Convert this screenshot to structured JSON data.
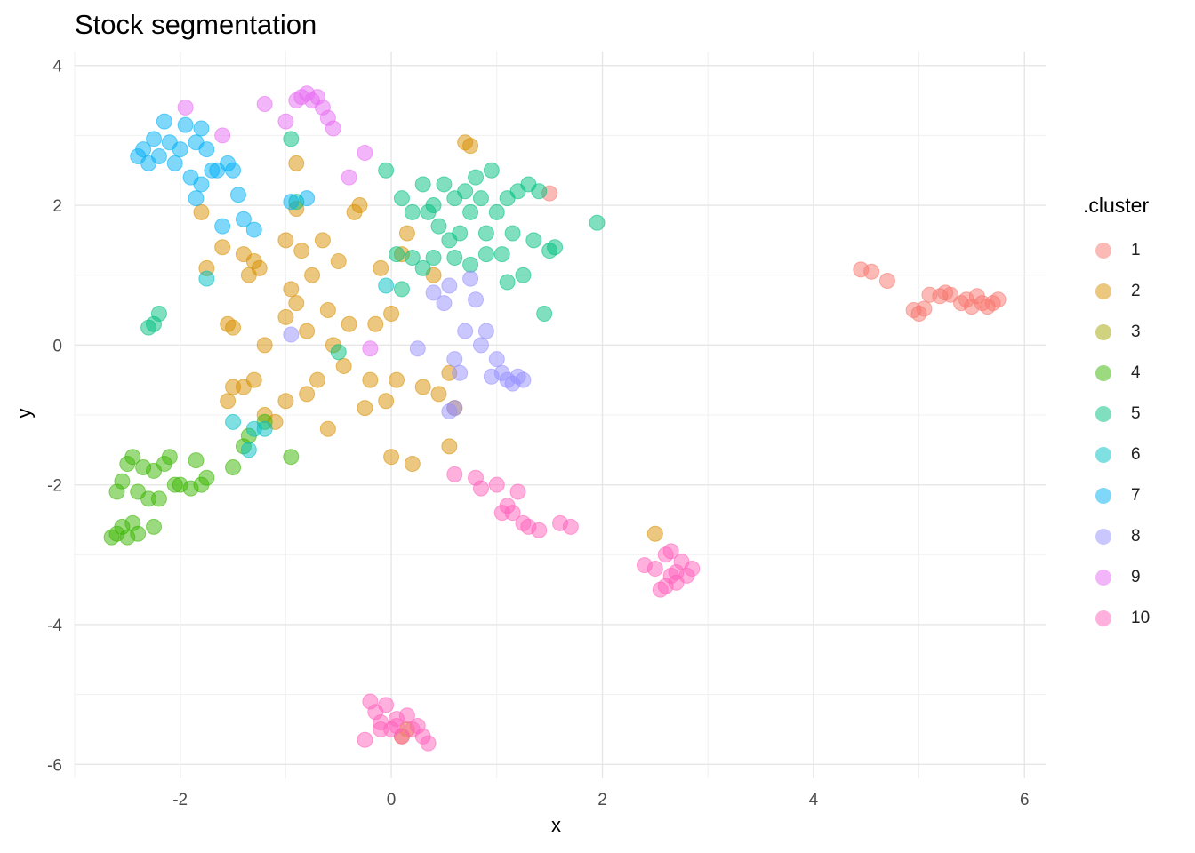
{
  "chart_data": {
    "type": "scatter",
    "title": "Stock segmentation",
    "xlabel": "x",
    "ylabel": "y",
    "xlim": [
      -3,
      6.2
    ],
    "ylim": [
      -6.2,
      4.2
    ],
    "x_ticks": [
      -2,
      0,
      2,
      4,
      6
    ],
    "y_ticks": [
      -6,
      -4,
      -2,
      0,
      2,
      4
    ],
    "grid": true,
    "legend": {
      "title": ".cluster",
      "position": "right"
    },
    "series": [
      {
        "name": "1",
        "color": "#F8766D",
        "points": [
          [
            1.5,
            2.17
          ],
          [
            4.45,
            1.08
          ],
          [
            4.55,
            1.05
          ],
          [
            4.7,
            0.92
          ],
          [
            4.95,
            0.5
          ],
          [
            5.0,
            0.45
          ],
          [
            5.05,
            0.52
          ],
          [
            5.1,
            0.72
          ],
          [
            5.2,
            0.7
          ],
          [
            5.25,
            0.75
          ],
          [
            5.3,
            0.72
          ],
          [
            5.4,
            0.6
          ],
          [
            5.45,
            0.65
          ],
          [
            5.5,
            0.55
          ],
          [
            5.55,
            0.7
          ],
          [
            5.6,
            0.6
          ],
          [
            5.65,
            0.55
          ],
          [
            5.7,
            0.6
          ],
          [
            5.75,
            0.65
          ]
        ]
      },
      {
        "name": "2",
        "color": "#D89000",
        "points": [
          [
            -1.8,
            1.9
          ],
          [
            -1.75,
            1.1
          ],
          [
            -1.6,
            1.4
          ],
          [
            -1.55,
            0.3
          ],
          [
            -1.5,
            0.25
          ],
          [
            -1.4,
            1.3
          ],
          [
            -1.35,
            1.0
          ],
          [
            -1.3,
            1.2
          ],
          [
            -1.25,
            1.1
          ],
          [
            -1.2,
            0.0
          ],
          [
            -1.4,
            -0.6
          ],
          [
            -1.5,
            -0.6
          ],
          [
            -1.55,
            -0.8
          ],
          [
            -1.3,
            -0.5
          ],
          [
            -1.2,
            -1.0
          ],
          [
            -1.1,
            -1.1
          ],
          [
            -1.0,
            -0.8
          ],
          [
            -1.0,
            0.4
          ],
          [
            -1.0,
            1.5
          ],
          [
            -0.95,
            0.8
          ],
          [
            -0.9,
            0.6
          ],
          [
            -0.9,
            1.95
          ],
          [
            -0.9,
            2.6
          ],
          [
            -0.85,
            1.35
          ],
          [
            -0.8,
            0.2
          ],
          [
            -0.8,
            -0.7
          ],
          [
            -0.75,
            1.0
          ],
          [
            -0.7,
            -0.5
          ],
          [
            -0.65,
            1.5
          ],
          [
            -0.6,
            -1.2
          ],
          [
            -0.6,
            0.5
          ],
          [
            -0.55,
            0.0
          ],
          [
            -0.5,
            1.2
          ],
          [
            -0.45,
            -0.3
          ],
          [
            -0.4,
            0.3
          ],
          [
            -0.35,
            1.9
          ],
          [
            -0.3,
            2.0
          ],
          [
            -0.25,
            -0.9
          ],
          [
            -0.2,
            -0.5
          ],
          [
            -0.15,
            0.3
          ],
          [
            -0.1,
            1.1
          ],
          [
            -0.05,
            -0.8
          ],
          [
            0.0,
            0.45
          ],
          [
            0.0,
            -1.6
          ],
          [
            0.05,
            -0.5
          ],
          [
            0.1,
            1.3
          ],
          [
            0.15,
            1.6
          ],
          [
            0.2,
            -1.7
          ],
          [
            0.3,
            -0.6
          ],
          [
            0.4,
            1.0
          ],
          [
            0.45,
            -0.7
          ],
          [
            0.55,
            -0.4
          ],
          [
            0.6,
            -0.9
          ],
          [
            0.55,
            -1.45
          ],
          [
            0.7,
            2.9
          ],
          [
            0.75,
            2.85
          ],
          [
            2.5,
            -2.7
          ],
          [
            0.15,
            -5.5
          ],
          [
            0.1,
            -5.6
          ]
        ]
      },
      {
        "name": "3",
        "color": "#A3A500",
        "points": []
      },
      {
        "name": "4",
        "color": "#39B600",
        "points": [
          [
            -2.65,
            -2.75
          ],
          [
            -2.6,
            -2.7
          ],
          [
            -2.55,
            -2.6
          ],
          [
            -2.5,
            -2.75
          ],
          [
            -2.45,
            -2.55
          ],
          [
            -2.4,
            -2.7
          ],
          [
            -2.6,
            -2.1
          ],
          [
            -2.55,
            -1.95
          ],
          [
            -2.5,
            -1.7
          ],
          [
            -2.45,
            -1.6
          ],
          [
            -2.4,
            -2.1
          ],
          [
            -2.35,
            -1.75
          ],
          [
            -2.3,
            -2.2
          ],
          [
            -2.25,
            -1.8
          ],
          [
            -2.25,
            -2.6
          ],
          [
            -2.2,
            -2.2
          ],
          [
            -2.15,
            -1.7
          ],
          [
            -2.1,
            -1.6
          ],
          [
            -2.05,
            -2.0
          ],
          [
            -2.0,
            -2.0
          ],
          [
            -1.9,
            -2.05
          ],
          [
            -1.85,
            -1.65
          ],
          [
            -1.8,
            -2.0
          ],
          [
            -1.75,
            -1.9
          ],
          [
            -1.5,
            -1.75
          ],
          [
            -1.4,
            -1.45
          ],
          [
            -1.35,
            -1.3
          ],
          [
            -1.2,
            -1.1
          ],
          [
            -0.95,
            -1.6
          ]
        ]
      },
      {
        "name": "5",
        "color": "#00BF7D",
        "points": [
          [
            -2.3,
            0.25
          ],
          [
            -2.25,
            0.3
          ],
          [
            -2.2,
            0.45
          ],
          [
            -0.95,
            2.95
          ],
          [
            -0.9,
            2.05
          ],
          [
            -0.05,
            2.5
          ],
          [
            0.1,
            2.1
          ],
          [
            0.2,
            1.9
          ],
          [
            0.3,
            2.3
          ],
          [
            0.35,
            1.9
          ],
          [
            0.4,
            2.0
          ],
          [
            0.45,
            1.7
          ],
          [
            0.5,
            2.3
          ],
          [
            0.55,
            1.5
          ],
          [
            0.6,
            2.1
          ],
          [
            0.65,
            1.6
          ],
          [
            0.7,
            2.2
          ],
          [
            0.75,
            1.9
          ],
          [
            0.8,
            2.4
          ],
          [
            0.85,
            2.1
          ],
          [
            0.9,
            1.6
          ],
          [
            0.95,
            2.5
          ],
          [
            1.0,
            1.9
          ],
          [
            1.05,
            1.3
          ],
          [
            1.1,
            2.1
          ],
          [
            1.15,
            1.6
          ],
          [
            1.2,
            2.2
          ],
          [
            1.25,
            1.0
          ],
          [
            1.3,
            2.3
          ],
          [
            1.35,
            1.5
          ],
          [
            1.4,
            2.2
          ],
          [
            1.45,
            0.45
          ],
          [
            1.5,
            1.35
          ],
          [
            1.55,
            1.4
          ],
          [
            1.95,
            1.75
          ],
          [
            0.05,
            1.3
          ],
          [
            0.1,
            0.8
          ],
          [
            0.2,
            1.25
          ],
          [
            0.3,
            1.1
          ],
          [
            0.4,
            1.25
          ],
          [
            0.6,
            1.25
          ],
          [
            0.75,
            1.15
          ],
          [
            0.9,
            1.3
          ],
          [
            1.1,
            0.9
          ],
          [
            -0.5,
            -0.1
          ]
        ]
      },
      {
        "name": "6",
        "color": "#00BFC4",
        "points": [
          [
            -1.75,
            0.95
          ],
          [
            -1.5,
            -1.1
          ],
          [
            -1.35,
            -1.5
          ],
          [
            -1.3,
            -1.2
          ],
          [
            -1.2,
            -1.2
          ],
          [
            -0.05,
            0.85
          ]
        ]
      },
      {
        "name": "7",
        "color": "#00B0F6",
        "points": [
          [
            -2.4,
            2.7
          ],
          [
            -2.35,
            2.8
          ],
          [
            -2.3,
            2.6
          ],
          [
            -2.25,
            2.95
          ],
          [
            -2.2,
            2.7
          ],
          [
            -2.15,
            3.2
          ],
          [
            -2.1,
            2.9
          ],
          [
            -2.05,
            2.6
          ],
          [
            -2.0,
            2.8
          ],
          [
            -1.95,
            3.15
          ],
          [
            -1.9,
            2.4
          ],
          [
            -1.85,
            2.9
          ],
          [
            -1.85,
            2.1
          ],
          [
            -1.8,
            3.1
          ],
          [
            -1.8,
            2.3
          ],
          [
            -1.75,
            2.8
          ],
          [
            -1.7,
            2.5
          ],
          [
            -1.65,
            2.5
          ],
          [
            -1.6,
            1.7
          ],
          [
            -1.55,
            2.6
          ],
          [
            -1.5,
            2.5
          ],
          [
            -1.45,
            2.15
          ],
          [
            -1.4,
            1.8
          ],
          [
            -1.3,
            1.65
          ],
          [
            -0.95,
            2.05
          ],
          [
            -0.8,
            2.1
          ]
        ]
      },
      {
        "name": "8",
        "color": "#9590FF",
        "points": [
          [
            -0.95,
            0.15
          ],
          [
            0.25,
            -0.05
          ],
          [
            0.4,
            0.75
          ],
          [
            0.5,
            0.6
          ],
          [
            0.55,
            0.85
          ],
          [
            0.6,
            -0.2
          ],
          [
            0.65,
            -0.4
          ],
          [
            0.7,
            0.2
          ],
          [
            0.75,
            0.95
          ],
          [
            0.8,
            0.65
          ],
          [
            0.85,
            0.0
          ],
          [
            0.9,
            0.2
          ],
          [
            0.95,
            -0.45
          ],
          [
            1.0,
            -0.2
          ],
          [
            1.05,
            -0.4
          ],
          [
            1.1,
            -0.5
          ],
          [
            1.15,
            -0.55
          ],
          [
            1.2,
            -0.45
          ],
          [
            1.25,
            -0.5
          ],
          [
            0.55,
            -0.95
          ],
          [
            0.6,
            -0.9
          ]
        ]
      },
      {
        "name": "9",
        "color": "#E76BF3",
        "points": [
          [
            -1.95,
            3.4
          ],
          [
            -1.6,
            3.0
          ],
          [
            -1.2,
            3.45
          ],
          [
            -1.0,
            3.2
          ],
          [
            -0.9,
            3.5
          ],
          [
            -0.85,
            3.55
          ],
          [
            -0.8,
            3.6
          ],
          [
            -0.75,
            3.5
          ],
          [
            -0.7,
            3.55
          ],
          [
            -0.65,
            3.4
          ],
          [
            -0.6,
            3.25
          ],
          [
            -0.55,
            3.1
          ],
          [
            -0.4,
            2.4
          ],
          [
            -0.25,
            2.75
          ],
          [
            -0.2,
            -0.05
          ]
        ]
      },
      {
        "name": "10",
        "color": "#FF62BC",
        "points": [
          [
            0.6,
            -1.85
          ],
          [
            0.8,
            -1.9
          ],
          [
            0.85,
            -2.05
          ],
          [
            1.0,
            -2.0
          ],
          [
            1.05,
            -2.4
          ],
          [
            1.1,
            -2.3
          ],
          [
            1.15,
            -2.4
          ],
          [
            1.2,
            -2.1
          ],
          [
            1.25,
            -2.55
          ],
          [
            1.3,
            -2.6
          ],
          [
            1.4,
            -2.65
          ],
          [
            1.6,
            -2.55
          ],
          [
            1.7,
            -2.6
          ],
          [
            2.4,
            -3.15
          ],
          [
            2.5,
            -3.2
          ],
          [
            2.55,
            -3.5
          ],
          [
            2.6,
            -3.0
          ],
          [
            2.65,
            -3.3
          ],
          [
            2.7,
            -3.4
          ],
          [
            2.75,
            -3.1
          ],
          [
            2.8,
            -3.3
          ],
          [
            2.85,
            -3.2
          ],
          [
            2.6,
            -3.45
          ],
          [
            2.65,
            -2.95
          ],
          [
            2.7,
            -3.25
          ],
          [
            -0.25,
            -5.65
          ],
          [
            -0.2,
            -5.1
          ],
          [
            -0.15,
            -5.25
          ],
          [
            -0.1,
            -5.4
          ],
          [
            -0.05,
            -5.15
          ],
          [
            0.0,
            -5.5
          ],
          [
            0.05,
            -5.35
          ],
          [
            0.1,
            -5.6
          ],
          [
            0.15,
            -5.3
          ],
          [
            0.2,
            -5.5
          ],
          [
            0.25,
            -5.45
          ],
          [
            0.3,
            -5.6
          ],
          [
            0.35,
            -5.7
          ],
          [
            -0.1,
            -5.5
          ],
          [
            0.05,
            -5.45
          ]
        ]
      }
    ]
  }
}
